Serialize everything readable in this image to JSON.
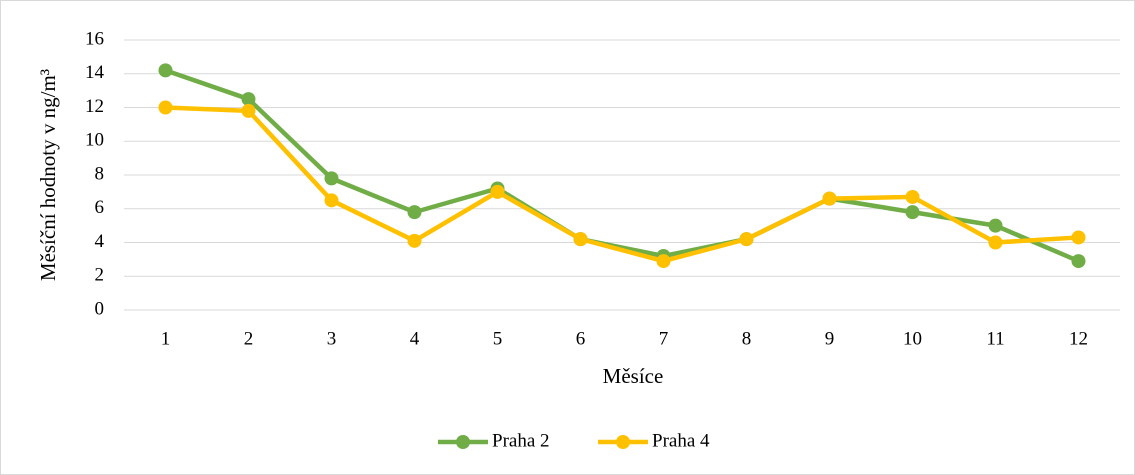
{
  "chart_data": {
    "type": "line",
    "x_label": "Měsíce",
    "y_label": "Měsíční hodnoty v ng/m³",
    "categories": [
      "1",
      "2",
      "3",
      "4",
      "5",
      "6",
      "7",
      "8",
      "9",
      "10",
      "11",
      "12"
    ],
    "series": [
      {
        "name": "Praha 2",
        "color": "#70ad47",
        "values": [
          14.2,
          12.5,
          7.8,
          5.8,
          7.2,
          4.2,
          3.2,
          4.2,
          6.6,
          5.8,
          5.0,
          2.9
        ]
      },
      {
        "name": "Praha 4",
        "color": "#ffc000",
        "values": [
          12.0,
          11.8,
          6.5,
          4.1,
          7.0,
          4.2,
          2.9,
          4.2,
          6.6,
          6.7,
          4.0,
          4.3
        ]
      }
    ],
    "ylim": [
      0,
      16
    ],
    "yticks": [
      0,
      2,
      4,
      6,
      8,
      10,
      12,
      14,
      16
    ],
    "grid": true,
    "legend": "bottom"
  }
}
